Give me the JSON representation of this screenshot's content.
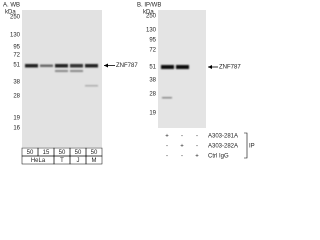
{
  "panel_a": {
    "title": "A. WB",
    "unit": "kDa",
    "markers": [
      "250",
      "130",
      "95",
      "72",
      "51",
      "38",
      "28",
      "19",
      "16"
    ],
    "target": "ZNF787",
    "amounts": [
      "50",
      "15",
      "50",
      "50",
      "50"
    ],
    "cell_lines": [
      {
        "label": "HeLa",
        "span": 2
      },
      {
        "label": "T",
        "span": 1
      },
      {
        "label": "J",
        "span": 1
      },
      {
        "label": "M",
        "span": 1
      }
    ]
  },
  "panel_b": {
    "title": "B. IP/WB",
    "unit": "kDa",
    "markers": [
      "250",
      "130",
      "95",
      "72",
      "51",
      "38",
      "28",
      "19"
    ],
    "target": "ZNF787",
    "rows": [
      {
        "label": "A303-281A",
        "signs": [
          "+",
          "-",
          "-"
        ]
      },
      {
        "label": "A303-282A",
        "signs": [
          "-",
          "+",
          "-"
        ]
      },
      {
        "label": "Ctrl IgG",
        "signs": [
          "-",
          "-",
          "+"
        ]
      }
    ],
    "group_label": "IP"
  }
}
